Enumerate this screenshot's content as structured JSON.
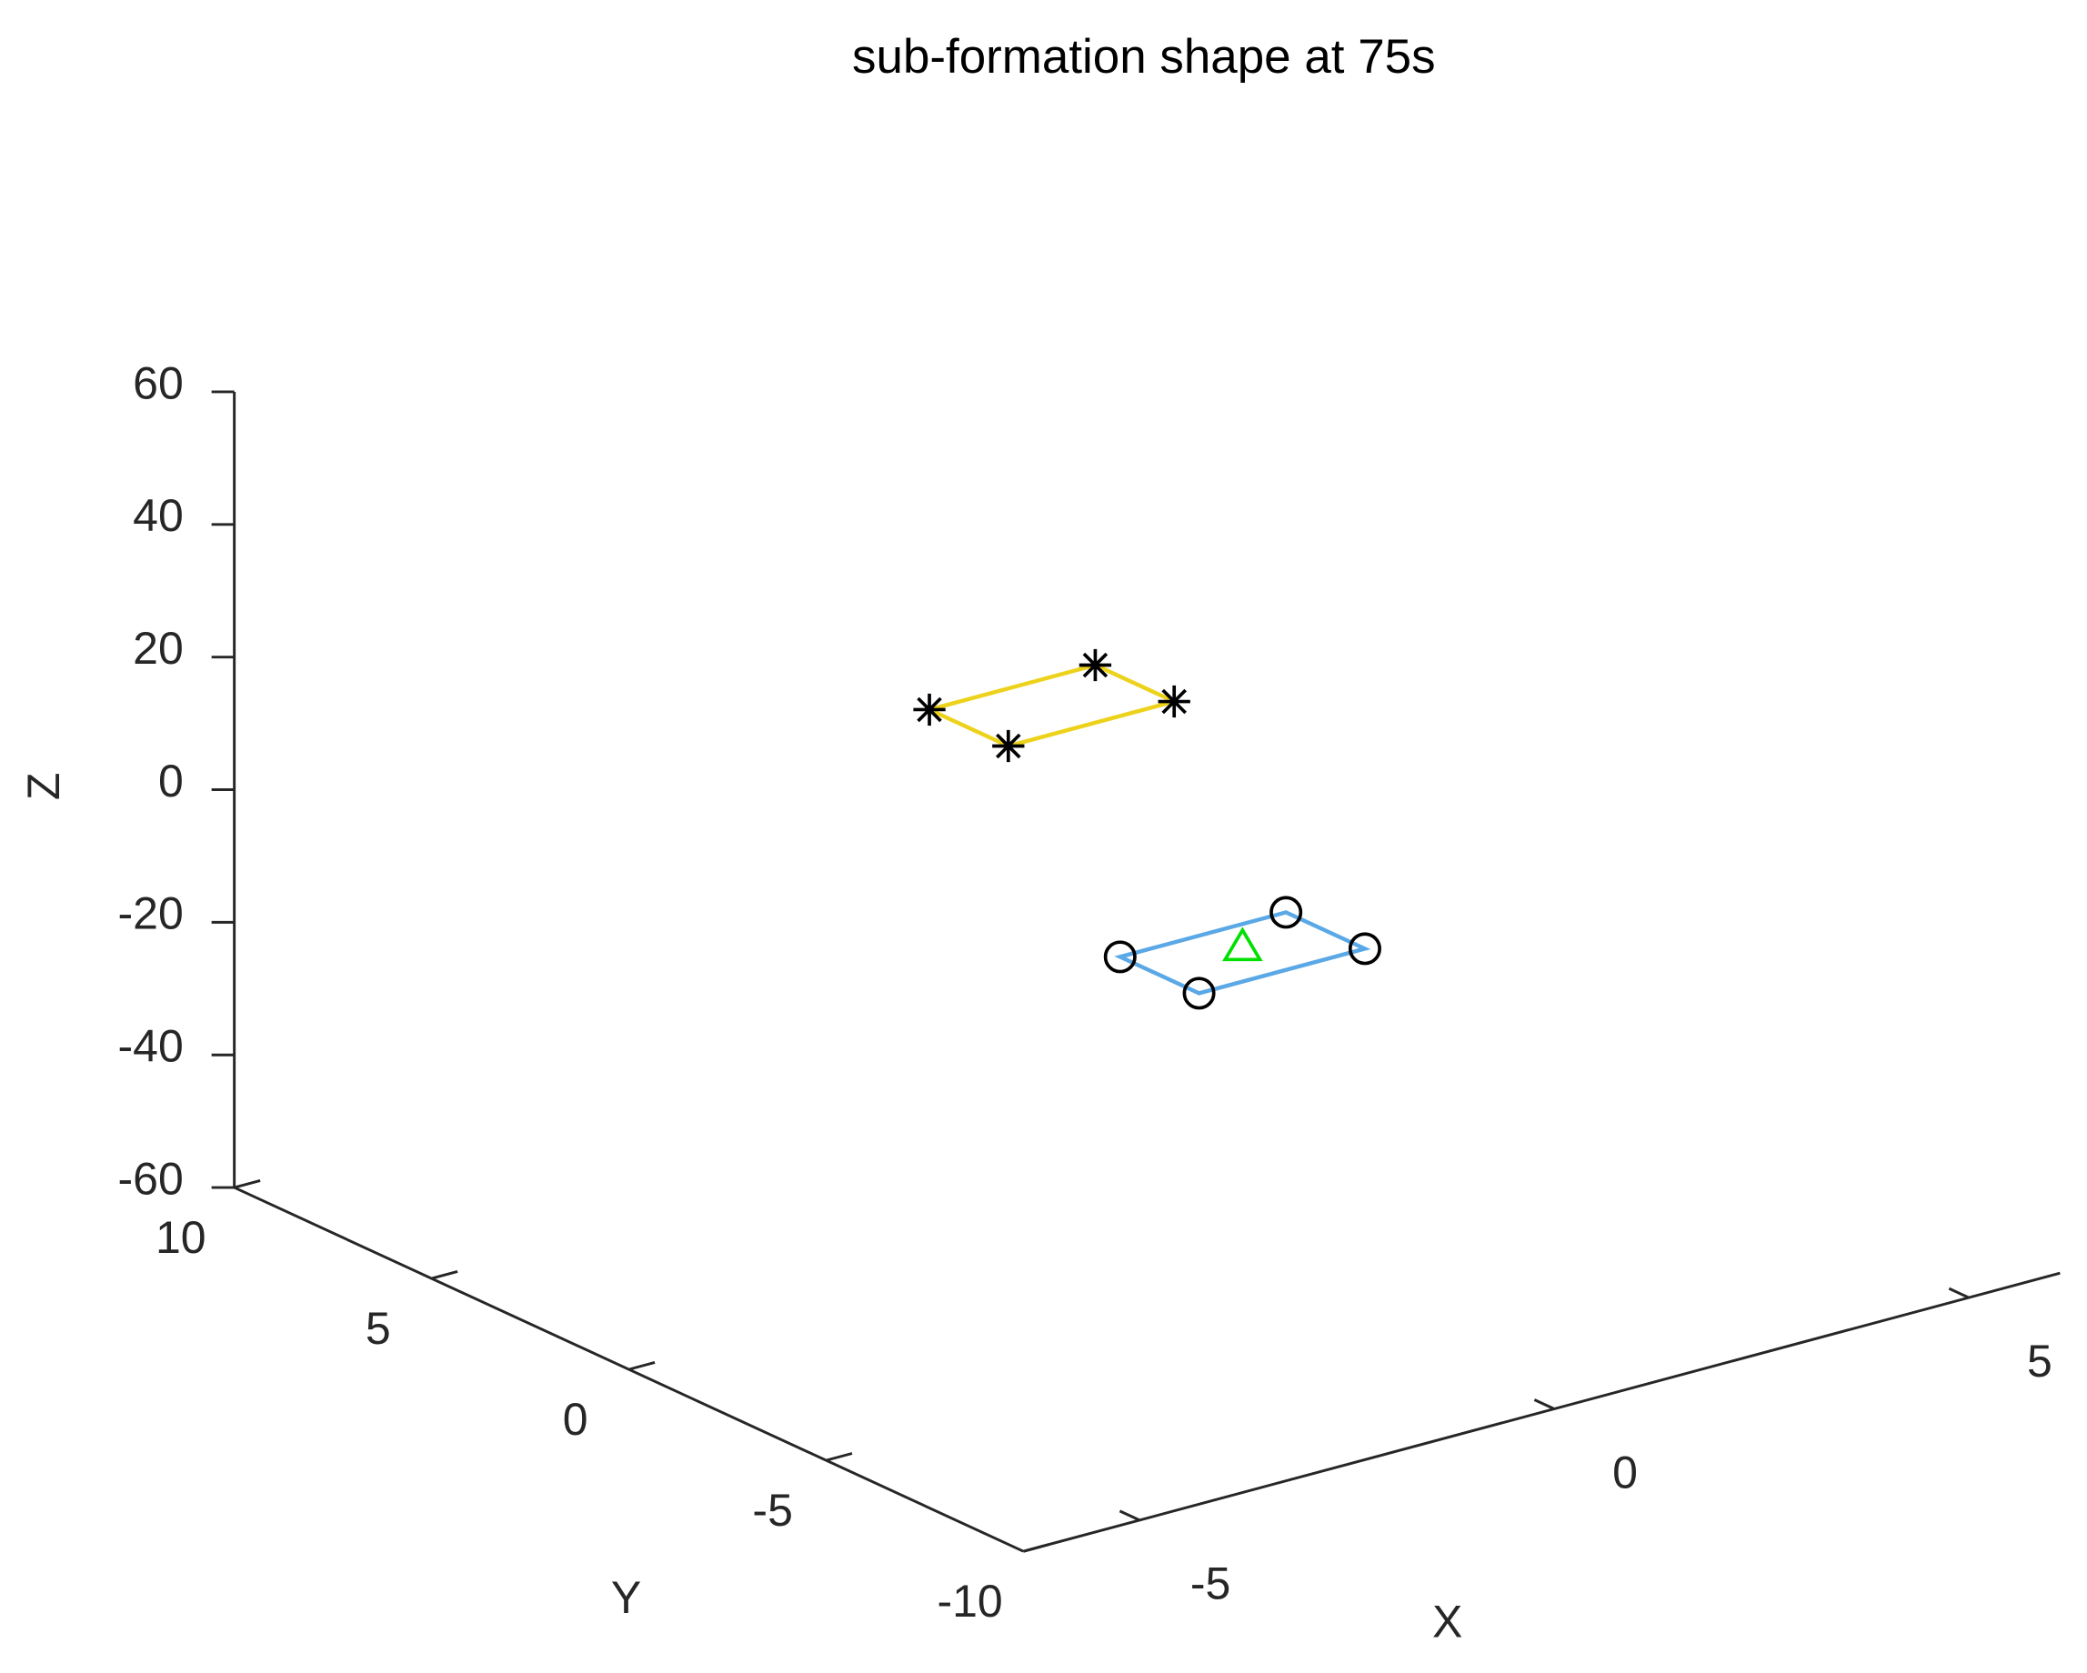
{
  "chart_data": {
    "type": "line3d",
    "title": "sub-formation shape at 75s",
    "xlabel": "X",
    "ylabel": "Y",
    "zlabel": "Z",
    "xlim": [
      -6.4,
      6.1
    ],
    "ylim": [
      -10,
      10
    ],
    "zlim": [
      -60,
      60
    ],
    "xticks": [
      -5,
      0,
      5
    ],
    "yticks": [
      -10,
      -5,
      0,
      5,
      10
    ],
    "zticks": [
      -60,
      -40,
      -20,
      0,
      20,
      40,
      60
    ],
    "series": [
      {
        "color": "#edd21b",
        "marker": "*",
        "marker_color": "#000000",
        "closed": true,
        "x": [
          -2.3,
          -2.3,
          -0.3,
          -0.3
        ],
        "y": [
          1,
          -1,
          -1,
          1
        ],
        "z": [
          23,
          23,
          23,
          23
        ]
      },
      {
        "color": "#5aa8e6",
        "marker": "o",
        "marker_color": "#000000",
        "closed": true,
        "x": [
          0,
          0,
          2,
          2
        ],
        "y": [
          1,
          -1,
          -1,
          1
        ],
        "z": [
          -22,
          -22,
          -22,
          -22
        ]
      },
      {
        "color": null,
        "marker": "^",
        "marker_color": "#00e000",
        "closed": false,
        "x": [
          1
        ],
        "y": [
          0
        ],
        "z": [
          -21
        ]
      }
    ]
  }
}
